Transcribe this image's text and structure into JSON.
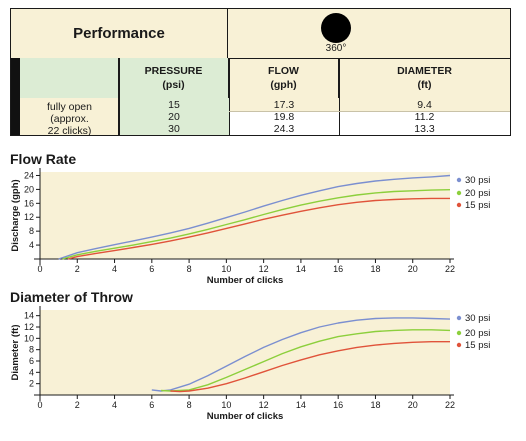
{
  "table": {
    "title": "Performance",
    "pattern_label": "360°",
    "headers": [
      {
        "line1": "PRESSURE",
        "line2": "(psi)"
      },
      {
        "line1": "FLOW",
        "line2": "(gph)"
      },
      {
        "line1": "DIAMETER",
        "line2": "(ft)"
      }
    ],
    "row_labels": [
      "fully open",
      "(approx.",
      "22 clicks)"
    ],
    "rows": [
      [
        "15",
        "17.3",
        "9.4"
      ],
      [
        "20",
        "19.8",
        "11.2"
      ],
      [
        "30",
        "24.3",
        "13.3"
      ]
    ]
  },
  "chart_data": [
    {
      "type": "line",
      "title": "Flow Rate",
      "xlabel": "Number of clicks",
      "ylabel": "Discharge (gph)",
      "xlim": [
        0,
        22
      ],
      "ylim": [
        0,
        25
      ],
      "xticks": [
        0,
        2,
        4,
        6,
        8,
        10,
        12,
        14,
        16,
        18,
        20,
        22
      ],
      "yticks": [
        4,
        8,
        12,
        16,
        20,
        24
      ],
      "grid": false,
      "legend": "right",
      "series": [
        {
          "name": "30 psi",
          "color": "#7b8fd0",
          "x": [
            1,
            2,
            3,
            4,
            5,
            6,
            7,
            8,
            9,
            10,
            11,
            12,
            13,
            14,
            15,
            16,
            17,
            18,
            19,
            20,
            21,
            22
          ],
          "y": [
            0,
            1.8,
            3.0,
            4.1,
            5.2,
            6.3,
            7.5,
            8.8,
            10.3,
            11.9,
            13.5,
            15.2,
            16.8,
            18.3,
            19.6,
            20.8,
            21.7,
            22.4,
            22.9,
            23.3,
            23.6,
            24.0
          ]
        },
        {
          "name": "20 psi",
          "color": "#8ccf3c",
          "x": [
            1.2,
            2,
            3,
            4,
            5,
            6,
            7,
            8,
            9,
            10,
            11,
            12,
            13,
            14,
            15,
            16,
            17,
            18,
            19,
            20,
            21,
            22
          ],
          "y": [
            0,
            1.2,
            2.2,
            3.1,
            4.0,
            5.0,
            6.0,
            7.2,
            8.5,
            9.9,
            11.3,
            12.8,
            14.2,
            15.5,
            16.6,
            17.6,
            18.4,
            19.0,
            19.4,
            19.6,
            19.8,
            19.9
          ]
        },
        {
          "name": "15 psi",
          "color": "#e0533a",
          "x": [
            1.5,
            2,
            3,
            4,
            5,
            6,
            7,
            8,
            9,
            10,
            11,
            12,
            13,
            14,
            15,
            16,
            17,
            18,
            19,
            20,
            21,
            22
          ],
          "y": [
            0,
            0.7,
            1.6,
            2.4,
            3.3,
            4.2,
            5.2,
            6.3,
            7.5,
            8.8,
            10.1,
            11.4,
            12.6,
            13.7,
            14.7,
            15.6,
            16.3,
            16.8,
            17.1,
            17.3,
            17.4,
            17.4
          ]
        }
      ]
    },
    {
      "type": "line",
      "title": "Diameter of Throw",
      "xlabel": "Number of clicks",
      "ylabel": "Diameter (ft)",
      "xlim": [
        0,
        22
      ],
      "ylim": [
        0,
        15
      ],
      "xticks": [
        0,
        2,
        4,
        6,
        8,
        10,
        12,
        14,
        16,
        18,
        20,
        22
      ],
      "yticks": [
        2,
        4,
        6,
        8,
        10,
        12,
        14
      ],
      "grid": false,
      "legend": "right",
      "series": [
        {
          "name": "30 psi",
          "color": "#7b8fd0",
          "x": [
            6,
            6.5,
            7,
            8,
            9,
            10,
            11,
            12,
            13,
            14,
            15,
            16,
            17,
            18,
            19,
            20,
            21,
            22
          ],
          "y": [
            0.9,
            0.7,
            0.9,
            1.9,
            3.4,
            5.1,
            6.8,
            8.4,
            9.8,
            11.0,
            12.0,
            12.7,
            13.2,
            13.5,
            13.6,
            13.6,
            13.5,
            13.4
          ]
        },
        {
          "name": "20 psi",
          "color": "#8ccf3c",
          "x": [
            6.5,
            7,
            8,
            9,
            10,
            11,
            12,
            13,
            14,
            15,
            16,
            17,
            18,
            19,
            20,
            21,
            22
          ],
          "y": [
            0.8,
            0.7,
            0.9,
            1.8,
            3.1,
            4.5,
            5.9,
            7.3,
            8.5,
            9.5,
            10.3,
            10.8,
            11.2,
            11.4,
            11.5,
            11.5,
            11.4
          ]
        },
        {
          "name": "15 psi",
          "color": "#e0533a",
          "x": [
            7,
            7.5,
            8,
            9,
            10,
            11,
            12,
            13,
            14,
            15,
            16,
            17,
            18,
            19,
            20,
            21,
            22
          ],
          "y": [
            0.7,
            0.6,
            0.7,
            1.2,
            2.0,
            3.0,
            4.1,
            5.2,
            6.2,
            7.1,
            7.8,
            8.4,
            8.8,
            9.1,
            9.3,
            9.4,
            9.4
          ]
        }
      ]
    }
  ]
}
